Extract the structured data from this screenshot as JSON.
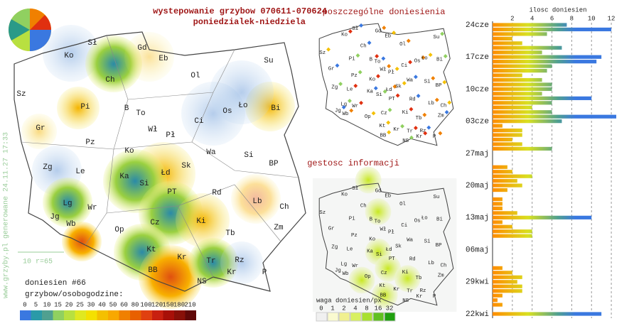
{
  "header": {
    "title": "wystepowanie grzybow 070611-070624",
    "subtitle": "poniedzialek-niedziela"
  },
  "map": {
    "labels": [
      "Sł",
      "Gd",
      "Eb",
      "Su",
      "Ko",
      "Ch",
      "Ol",
      "Sz",
      "Pi",
      "B",
      "To",
      "Os",
      "Ło",
      "Bi",
      "Ci",
      "Gr",
      "Wł",
      "Pł",
      "Pz",
      "Ko",
      "Wa",
      "Si",
      "BP",
      "Zg",
      "Le",
      "Ka",
      "Łd",
      "Sk",
      "Si",
      "PT",
      "Rd",
      "Lb",
      "Ch",
      "Lg",
      "Wr",
      "Jg",
      "Wb",
      "Op",
      "Cz",
      "Ki",
      "Zm",
      "Tb",
      "Kt",
      "Kr",
      "Tr",
      "Rz",
      "P",
      "BB",
      "NS",
      "Kr"
    ],
    "reports_title": "doniesien #66",
    "scale_note": "10 r=65",
    "legend_title": "grzybow/osobogodzine:",
    "legend": [
      0,
      5,
      10,
      15,
      20,
      25,
      30,
      40,
      50,
      60,
      80,
      100,
      120,
      150,
      180,
      210
    ],
    "footer": "www.grzyby.pl generowane 24.11.27 17:33"
  },
  "mini_maps": {
    "reports_title": "poszczególne doniesienia",
    "density_title": "gestosc informacji",
    "density_legend_title": "waga doniesien/px",
    "density_legend": [
      0,
      1,
      2,
      4,
      8,
      16,
      32
    ]
  },
  "daily": {
    "title": "ilosc doniesien",
    "xlim": [
      0,
      13
    ],
    "xticks": [
      2,
      4,
      6,
      8,
      10,
      12
    ],
    "dates": [
      "22kwi",
      "29kwi",
      "06maj",
      "13maj",
      "20maj",
      "27maj",
      "03cze",
      "10cze",
      "17cze",
      "24cze"
    ],
    "values": [
      11,
      0,
      1,
      0.5,
      1,
      3,
      3,
      2.5,
      3,
      2,
      1,
      0,
      0,
      0,
      0,
      0,
      0,
      4,
      4,
      2,
      1,
      10,
      2.5,
      1,
      1,
      1,
      0,
      1.5,
      3,
      2.5,
      4,
      2,
      1.5,
      0,
      0,
      0,
      6,
      3,
      2,
      3,
      3,
      1,
      7,
      12.5,
      6,
      4,
      6,
      10,
      5,
      6,
      6,
      5,
      3,
      5.5,
      6,
      10.5,
      11,
      5,
      7,
      3,
      2,
      5.5,
      12,
      7.5
    ]
  }
}
